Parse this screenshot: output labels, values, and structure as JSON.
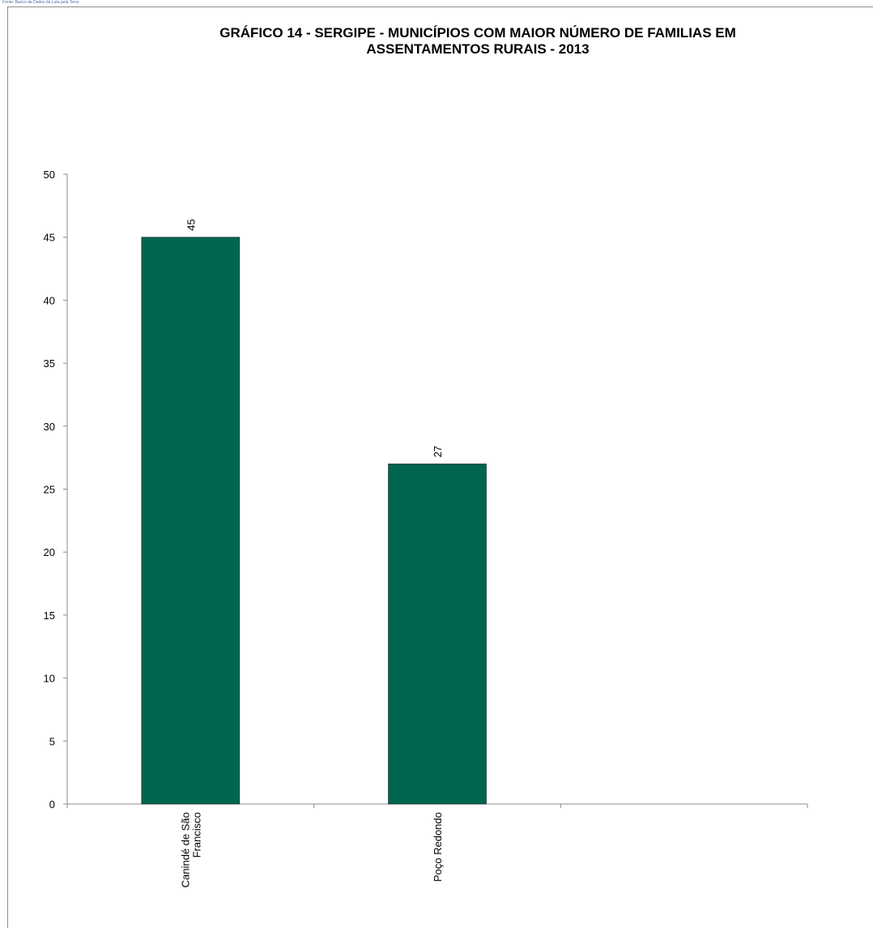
{
  "source_note": "Fonte: Banco de Dados da Luta pela Terra",
  "chart_data": {
    "type": "bar",
    "title_lines": [
      "GRÁFICO 14  - SERGIPE - MUNICÍPIOS COM MAIOR NÚMERO DE  FAMILIAS EM",
      "ASSENTAMENTOS RURAIS -  2013"
    ],
    "categories": [
      [
        "Canindé de São",
        "Francisco"
      ],
      [
        "Poço Redondo"
      ],
      [
        ""
      ]
    ],
    "values": [
      45,
      27,
      null
    ],
    "data_labels": [
      "45",
      "27",
      ""
    ],
    "ylim": [
      0,
      50
    ],
    "yticks": [
      0,
      5,
      10,
      15,
      20,
      25,
      30,
      35,
      40,
      45,
      50
    ],
    "xlabel": "",
    "ylabel": "",
    "grid": false,
    "legend": "none",
    "bar_color": "#00664f"
  }
}
